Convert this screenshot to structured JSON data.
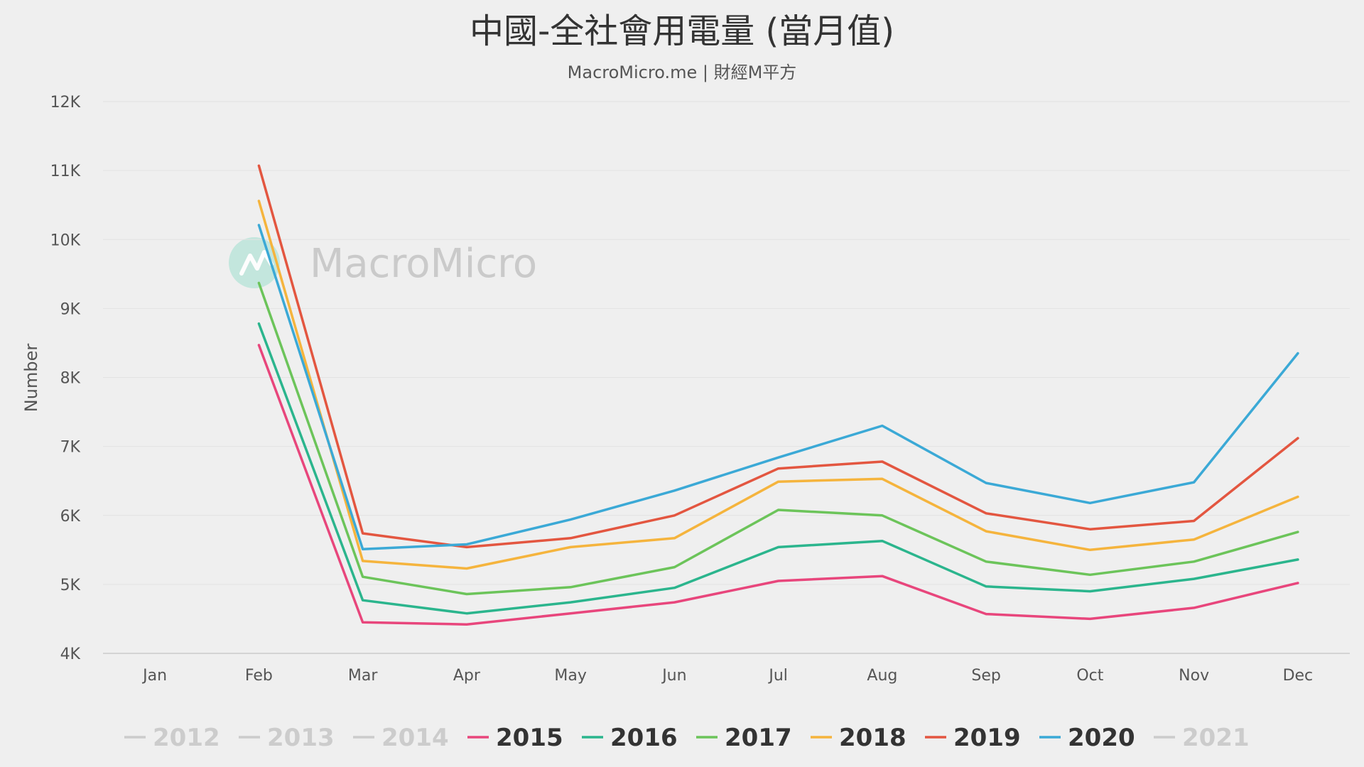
{
  "chart_data": {
    "type": "line",
    "title": "中國-全社會用電量 (當月值)",
    "subtitle": "MacroMicro.me | 財經M平方",
    "watermark": "MacroMicro",
    "xlabel": "",
    "ylabel": "Number",
    "categories": [
      "Jan",
      "Feb",
      "Mar",
      "Apr",
      "May",
      "Jun",
      "Jul",
      "Aug",
      "Sep",
      "Oct",
      "Nov",
      "Dec"
    ],
    "ylim": [
      4000,
      12000
    ],
    "yticks": [
      4000,
      5000,
      6000,
      7000,
      8000,
      9000,
      10000,
      11000,
      12000
    ],
    "ytick_labels": [
      "4K",
      "5K",
      "6K",
      "7K",
      "8K",
      "9K",
      "10K",
      "11K",
      "12K"
    ],
    "grid": true,
    "legend_position": "bottom",
    "series": [
      {
        "name": "2012",
        "color": "#cccccc",
        "visible": false,
        "values": [
          null,
          null,
          null,
          null,
          null,
          null,
          null,
          null,
          null,
          null,
          null,
          null
        ]
      },
      {
        "name": "2013",
        "color": "#cccccc",
        "visible": false,
        "values": [
          null,
          null,
          null,
          null,
          null,
          null,
          null,
          null,
          null,
          null,
          null,
          null
        ]
      },
      {
        "name": "2014",
        "color": "#cccccc",
        "visible": false,
        "values": [
          null,
          null,
          null,
          null,
          null,
          null,
          null,
          null,
          null,
          null,
          null,
          null
        ]
      },
      {
        "name": "2015",
        "color": "#e8467c",
        "visible": true,
        "values": [
          null,
          8470,
          4450,
          4420,
          4580,
          4740,
          5050,
          5120,
          4570,
          4500,
          4660,
          5020
        ]
      },
      {
        "name": "2016",
        "color": "#2bb58d",
        "visible": true,
        "values": [
          null,
          8780,
          4770,
          4580,
          4740,
          4950,
          5540,
          5630,
          4970,
          4900,
          5080,
          5360
        ]
      },
      {
        "name": "2017",
        "color": "#6cc45a",
        "visible": true,
        "values": [
          null,
          9370,
          5110,
          4860,
          4960,
          5250,
          6080,
          6000,
          5330,
          5140,
          5330,
          5760
        ]
      },
      {
        "name": "2018",
        "color": "#f5b43d",
        "visible": true,
        "values": [
          null,
          10560,
          5340,
          5230,
          5540,
          5670,
          6490,
          6530,
          5770,
          5500,
          5650,
          6270
        ]
      },
      {
        "name": "2019",
        "color": "#e35640",
        "visible": true,
        "values": [
          null,
          11070,
          5740,
          5540,
          5670,
          6000,
          6680,
          6780,
          6030,
          5800,
          5920,
          7120
        ]
      },
      {
        "name": "2020",
        "color": "#3ba9d6",
        "visible": true,
        "values": [
          null,
          10210,
          5510,
          5580,
          5940,
          6360,
          6840,
          7300,
          6470,
          6180,
          6480,
          8350
        ]
      },
      {
        "name": "2021",
        "color": "#cccccc",
        "visible": false,
        "values": [
          null,
          null,
          null,
          null,
          null,
          null,
          null,
          null,
          null,
          null,
          null,
          null
        ]
      }
    ]
  }
}
